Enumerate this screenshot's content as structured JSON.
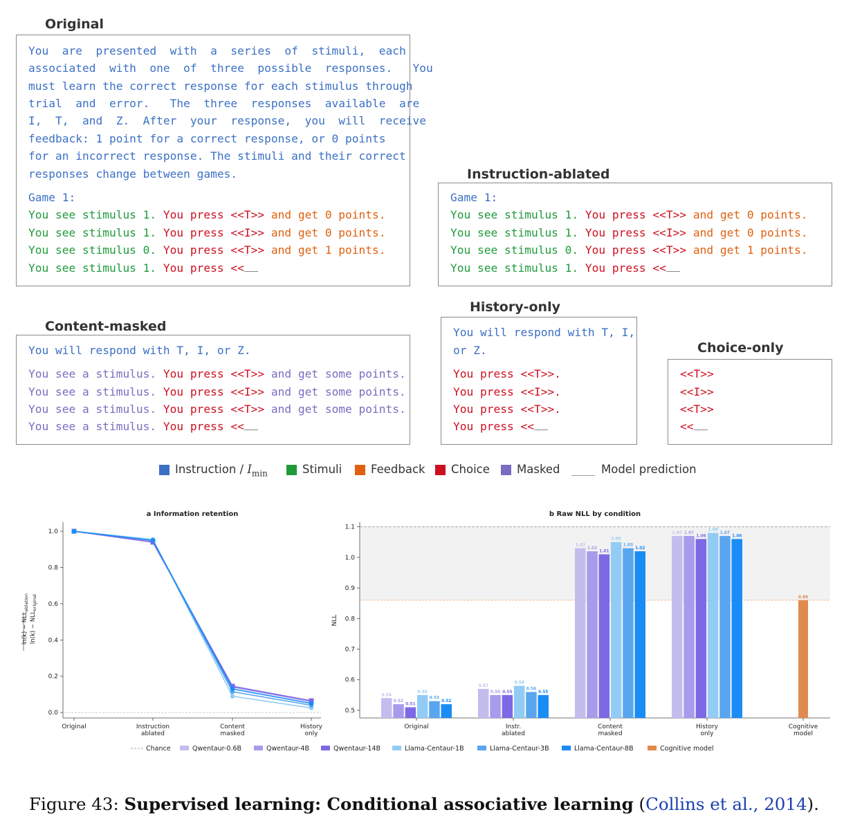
{
  "panels": {
    "original": {
      "title": "Original",
      "instruction_lines": [
        "You  are  presented  with  a  series  of  stimuli,  each",
        "associated  with  one  of  three  possible  responses.   You",
        "must learn the correct response for each stimulus through",
        "trial  and  error.   The  three  responses  available  are",
        "I,  T,  and  Z.  After  your  response,  you  will  receive",
        "feedback: 1 point for a correct response, or 0 points",
        "for an incorrect response. The stimuli and their correct",
        "responses change between games."
      ],
      "game_label": "Game 1:",
      "trials": [
        {
          "stim": "You see stimulus 1.",
          "choice_prefix": " You press ",
          "choice": "<<T>>",
          "feedback": " and get 0 points."
        },
        {
          "stim": "You see stimulus 1.",
          "choice_prefix": " You press ",
          "choice": "<<I>>",
          "feedback": " and get 0 points."
        },
        {
          "stim": "You see stimulus 0.",
          "choice_prefix": " You press ",
          "choice": "<<T>>",
          "feedback": " and get 1 points."
        }
      ],
      "final": {
        "stim": "You see stimulus 1.",
        "choice_prefix": " You press ",
        "open": "<<"
      }
    },
    "ablated": {
      "title": "Instruction-ablated",
      "game_label": "Game 1:",
      "trials": [
        {
          "stim": "You see stimulus 1.",
          "choice_prefix": " You press ",
          "choice": "<<T>>",
          "feedback": " and get 0 points."
        },
        {
          "stim": "You see stimulus 1.",
          "choice_prefix": " You press ",
          "choice": "<<I>>",
          "feedback": " and get 0 points."
        },
        {
          "stim": "You see stimulus 0.",
          "choice_prefix": " You press ",
          "choice": "<<T>>",
          "feedback": " and get 1 points."
        }
      ],
      "final": {
        "stim": "You see stimulus 1.",
        "choice_prefix": " You press ",
        "open": "<<"
      }
    },
    "masked": {
      "title": "Content-masked",
      "instruction": "You will respond with T, I, or Z.",
      "trials": [
        {
          "stim": "You see a stimulus.",
          "choice_prefix": " You press ",
          "choice": "<<T>>",
          "feedback": " and get some points."
        },
        {
          "stim": "You see a stimulus.",
          "choice_prefix": " You press ",
          "choice": "<<I>>",
          "feedback": " and get some points."
        },
        {
          "stim": "You see a stimulus.",
          "choice_prefix": " You press ",
          "choice": "<<T>>",
          "feedback": " and get some points."
        }
      ],
      "final": {
        "stim": "You see a stimulus.",
        "choice_prefix": " You press ",
        "open": "<<"
      }
    },
    "history": {
      "title": "History-only",
      "instruction_lines": [
        "You will respond with T, I,",
        "or Z."
      ],
      "trials": [
        "You press <<T>>.",
        "You press <<I>>.",
        "You press <<T>>."
      ],
      "final": "You press <<"
    },
    "choice": {
      "title": "Choice-only",
      "trials": [
        "<<T>>",
        "<<I>>",
        "<<T>>"
      ],
      "final": "<<"
    }
  },
  "legend": {
    "items": [
      {
        "label": "Instruction / ",
        "math": "I",
        "sub": "min",
        "color": "#3b70c4"
      },
      {
        "label": "Stimuli",
        "color": "#1f9a3a"
      },
      {
        "label": "Feedback",
        "color": "#e06010"
      },
      {
        "label": "Choice",
        "color": "#cc1020"
      },
      {
        "label": "Masked",
        "color": "#7a6cc0"
      },
      {
        "label": "Model prediction",
        "color": "line"
      }
    ]
  },
  "chart_data": [
    {
      "type": "line",
      "title": "a  Information retention",
      "ylabel": "ln(k) − NLL_ablation / ln(k) − NLL_original",
      "categories": [
        "Original",
        "Instruction ablated",
        "Content masked",
        "History only"
      ],
      "ylim": [
        -0.03,
        1.05
      ],
      "yticks": [
        0.0,
        0.2,
        0.4,
        0.6,
        0.8,
        1.0
      ],
      "chance": 0.0,
      "series": [
        {
          "name": "Qwentaur-0.6B",
          "color": "#c3bdee",
          "values": [
            1.0,
            0.945,
            0.145,
            0.06
          ]
        },
        {
          "name": "Qwentaur-4B",
          "color": "#a79bec",
          "values": [
            1.0,
            0.94,
            0.14,
            0.06
          ]
        },
        {
          "name": "Qwentaur-14B",
          "color": "#7d69e6",
          "values": [
            1.0,
            0.94,
            0.145,
            0.065
          ]
        },
        {
          "name": "Llama-Centaur-1B",
          "color": "#92ccf5",
          "values": [
            1.0,
            0.955,
            0.09,
            0.025
          ]
        },
        {
          "name": "Llama-Centaur-3B",
          "color": "#5aa5ef",
          "values": [
            1.0,
            0.95,
            0.115,
            0.04
          ]
        },
        {
          "name": "Llama-Centaur-8B",
          "color": "#1a8cf5",
          "values": [
            1.0,
            0.95,
            0.13,
            0.05
          ]
        }
      ]
    },
    {
      "type": "bar",
      "title": "b  Raw NLL by condition",
      "ylabel": "NLL",
      "categories": [
        "Original",
        "Instr. ablated",
        "Content masked",
        "History only",
        "Cognitive model"
      ],
      "ylim": [
        0.475,
        1.115
      ],
      "yticks": [
        0.5,
        0.6,
        0.7,
        0.8,
        0.9,
        1.0,
        1.1
      ],
      "chance_line": 1.1,
      "cognitive_line": 0.86,
      "series": [
        {
          "name": "Qwentaur-0.6B",
          "color": "#c3bdee",
          "values": [
            0.54,
            0.57,
            1.03,
            1.07,
            null
          ],
          "labels": [
            "0.54",
            "0.57",
            "1.03",
            "1.07",
            ""
          ]
        },
        {
          "name": "Qwentaur-4B",
          "color": "#a79bec",
          "values": [
            0.52,
            0.55,
            1.02,
            1.07,
            null
          ],
          "labels": [
            "0.52",
            "0.55",
            "1.02",
            "1.07",
            ""
          ]
        },
        {
          "name": "Qwentaur-14B",
          "color": "#7d69e6",
          "values": [
            0.51,
            0.55,
            1.01,
            1.06,
            null
          ],
          "labels": [
            "0.51",
            "0.55",
            "1.01",
            "1.06",
            ""
          ]
        },
        {
          "name": "Llama-Centaur-1B",
          "color": "#92ccf5",
          "values": [
            0.55,
            0.58,
            1.05,
            1.08,
            null
          ],
          "labels": [
            "0.55",
            "0.58",
            "1.05",
            "1.08",
            ""
          ]
        },
        {
          "name": "Llama-Centaur-3B",
          "color": "#5aa5ef",
          "values": [
            0.53,
            0.56,
            1.03,
            1.07,
            null
          ],
          "labels": [
            "0.53",
            "0.56",
            "1.03",
            "1.07",
            ""
          ]
        },
        {
          "name": "Llama-Centaur-8B",
          "color": "#1a8cf5",
          "values": [
            0.52,
            0.55,
            1.02,
            1.06,
            null
          ],
          "labels": [
            "0.52",
            "0.55",
            "1.02",
            "1.06",
            ""
          ]
        },
        {
          "name": "Cognitive model",
          "color": "#e08a50",
          "values": [
            null,
            null,
            null,
            null,
            0.86
          ],
          "labels": [
            "",
            "",
            "",
            "",
            "0.86"
          ]
        }
      ]
    }
  ],
  "chart_legend": {
    "chance_label": "Chance",
    "items": [
      "Qwentaur-0.6B",
      "Qwentaur-4B",
      "Qwentaur-14B",
      "Llama-Centaur-1B",
      "Llama-Centaur-3B",
      "Llama-Centaur-8B",
      "Cognitive model"
    ]
  },
  "caption": {
    "prefix": "Figure 43: ",
    "bold": "Supervised learning: Conditional associative learning",
    "cite_open": " (",
    "cite": "Collins et al., 2014",
    "cite_close": ")."
  }
}
